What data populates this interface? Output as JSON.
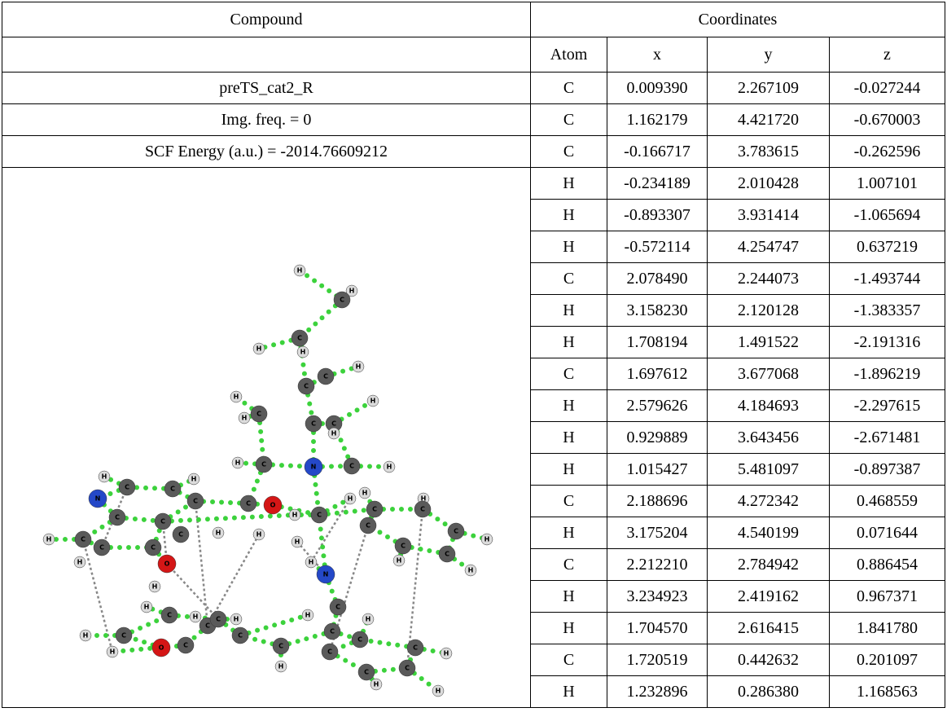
{
  "header": {
    "compound": "Compound",
    "coordinates": "Coordinates"
  },
  "columns": [
    "Atom",
    "x",
    "y",
    "z"
  ],
  "compound": {
    "name": "preTS_cat2_R",
    "frequency": "Img. freq. = 0",
    "energy": "SCF Energy (a.u.) = -2014.76609212"
  },
  "table": {
    "rows": [
      [
        "C",
        "0.009390",
        "2.267109",
        "-0.027244"
      ],
      [
        "C",
        "1.162179",
        "4.421720",
        "-0.670003"
      ],
      [
        "C",
        "-0.166717",
        "3.783615",
        "-0.262596"
      ],
      [
        "H",
        "-0.234189",
        "2.010428",
        "1.007101"
      ],
      [
        "H",
        "-0.893307",
        "3.931414",
        "-1.065694"
      ],
      [
        "H",
        "-0.572114",
        "4.254747",
        "0.637219"
      ],
      [
        "C",
        "2.078490",
        "2.244073",
        "-1.493744"
      ],
      [
        "H",
        "3.158230",
        "2.120128",
        "-1.383357"
      ],
      [
        "H",
        "1.708194",
        "1.491522",
        "-2.191316"
      ],
      [
        "C",
        "1.697612",
        "3.677068",
        "-1.896219"
      ],
      [
        "H",
        "2.579626",
        "4.184693",
        "-2.297615"
      ],
      [
        "H",
        "0.929889",
        "3.643456",
        "-2.671481"
      ],
      [
        "H",
        "1.015427",
        "5.481097",
        "-0.897387"
      ],
      [
        "C",
        "2.188696",
        "4.272342",
        "0.468559"
      ],
      [
        "H",
        "3.175204",
        "4.540199",
        "0.071644"
      ],
      [
        "C",
        "2.212210",
        "2.784942",
        "0.886454"
      ],
      [
        "H",
        "3.234923",
        "2.419162",
        "0.967371"
      ],
      [
        "H",
        "1.704570",
        "2.616415",
        "1.841780"
      ],
      [
        "C",
        "1.720519",
        "0.442632",
        "0.201097"
      ],
      [
        "H",
        "1.232896",
        "0.286380",
        "1.168563"
      ]
    ]
  },
  "molecule": {
    "atoms": [
      "H",
      "H",
      "C",
      "C",
      "H",
      "H",
      "C",
      "C",
      "H",
      "H",
      "H",
      "C",
      "H",
      "C",
      "C",
      "H",
      "H",
      "C",
      "N",
      "C",
      "H",
      "H",
      "C",
      "C",
      "H",
      "N",
      "C",
      "C",
      "O",
      "H",
      "H",
      "C",
      "H",
      "C",
      "C",
      "C",
      "H",
      "C",
      "C",
      "H",
      "C",
      "C",
      "C",
      "C",
      "H",
      "H",
      "H",
      "C",
      "C",
      "H",
      "H",
      "O",
      "H",
      "N",
      "H",
      "H",
      "C",
      "H",
      "C",
      "H",
      "H",
      "C",
      "C",
      "C",
      "H",
      "H",
      "H",
      "H",
      "C",
      "O",
      "C",
      "C",
      "C",
      "C",
      "C",
      "H",
      "C",
      "H",
      "H",
      "C",
      "C",
      "C",
      "H",
      "H"
    ]
  }
}
